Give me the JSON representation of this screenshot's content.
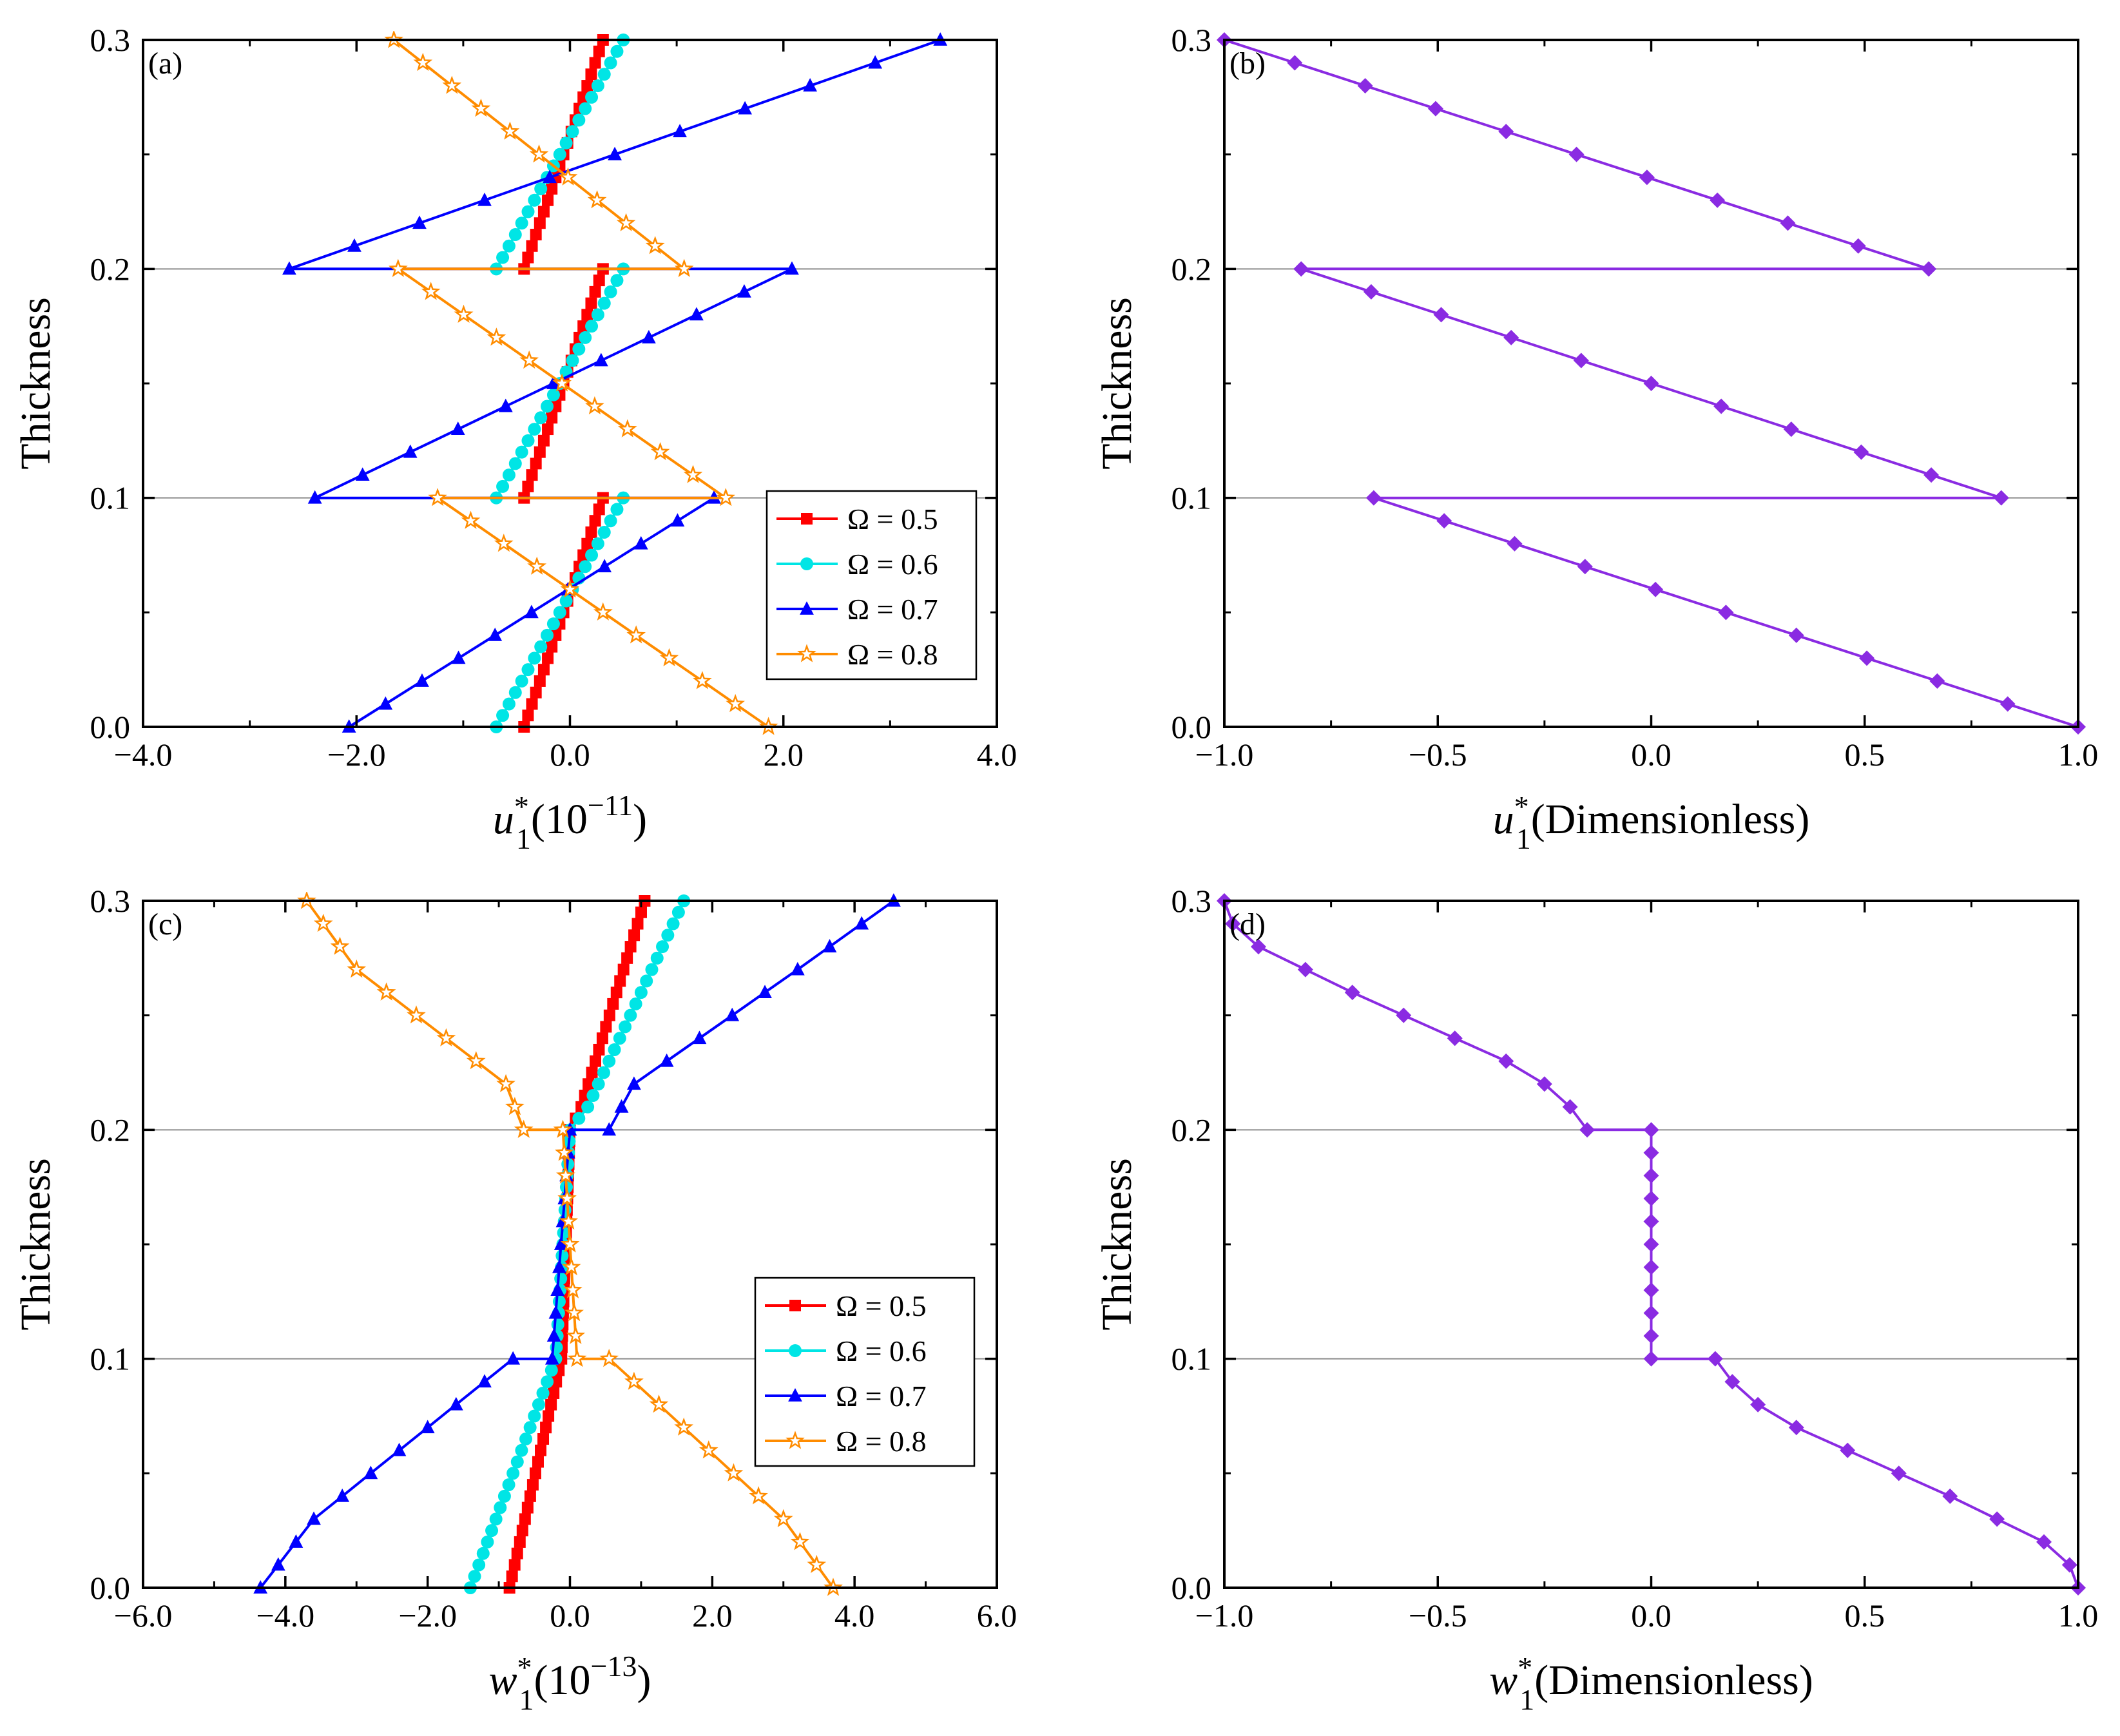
{
  "figure": {
    "chart_data": [
      {
        "id": "a",
        "type": "line",
        "panel_label": "(a)",
        "ylabel": "Thickness",
        "xlabel_var": "u",
        "xlabel_sub": "1",
        "xlabel_sup": "*",
        "xlabel_rest": "(10",
        "xlabel_exp": "−11",
        "xlabel_close": ")",
        "xlim": [
          -4.0,
          4.0
        ],
        "ylim": [
          0.0,
          0.3
        ],
        "xticks": [
          -4.0,
          -2.0,
          0.0,
          2.0,
          4.0
        ],
        "xtick_labels": [
          "−4.0",
          "−2.0",
          "0.0",
          "2.0",
          "4.0"
        ],
        "yticks": [
          0.0,
          0.1,
          0.2,
          0.3
        ],
        "ytick_labels": [
          "0.0",
          "0.1",
          "0.2",
          "0.3"
        ],
        "hlines": [
          0.1,
          0.2
        ],
        "legend": {
          "position": "right-middle",
          "entries": [
            "Ω = 0.5",
            "Ω = 0.6",
            "Ω = 0.7",
            "Ω = 0.8"
          ]
        },
        "series": [
          {
            "name": "Ω = 0.5",
            "color": "#ff0000",
            "marker": "square",
            "segments": [
              [
                [
                  -0.43,
                  0.0
                ],
                [
                  0.31,
                  0.1
                ]
              ],
              [
                [
                  -0.43,
                  0.1
                ],
                [
                  0.31,
                  0.2
                ]
              ],
              [
                [
                  -0.43,
                  0.2
                ],
                [
                  0.31,
                  0.3
                ]
              ]
            ],
            "step": 0.005
          },
          {
            "name": "Ω = 0.6",
            "color": "#00e5e5",
            "marker": "circle",
            "segments": [
              [
                [
                  -0.69,
                  0.0
                ],
                [
                  0.5,
                  0.1
                ]
              ],
              [
                [
                  -0.69,
                  0.1
                ],
                [
                  0.5,
                  0.2
                ]
              ],
              [
                [
                  -0.69,
                  0.2
                ],
                [
                  0.5,
                  0.3
                ]
              ]
            ],
            "step": 0.005
          },
          {
            "name": "Ω = 0.7",
            "color": "#0000ff",
            "marker": "triangle",
            "segments": [
              [
                [
                  -2.07,
                  0.0
                ],
                [
                  1.35,
                  0.1
                ]
              ],
              [
                [
                  -2.39,
                  0.1
                ],
                [
                  2.08,
                  0.2
                ]
              ],
              [
                [
                  -2.63,
                  0.2
                ],
                [
                  3.47,
                  0.3
                ]
              ]
            ],
            "step": 0.01
          },
          {
            "name": "Ω = 0.8",
            "color": "#ff8c00",
            "marker": "star",
            "segments": [
              [
                [
                  1.86,
                  0.0
                ],
                [
                  -1.24,
                  0.1
                ]
              ],
              [
                [
                  1.46,
                  0.1
                ],
                [
                  -1.61,
                  0.2
                ]
              ],
              [
                [
                  1.07,
                  0.2
                ],
                [
                  -1.65,
                  0.3
                ]
              ]
            ],
            "step": 0.01
          }
        ]
      },
      {
        "id": "b",
        "type": "line",
        "panel_label": "(b)",
        "ylabel": "Thickness",
        "xlabel_var": "u",
        "xlabel_sub": "1",
        "xlabel_sup": "*",
        "xlabel_rest": "(Dimensionless)",
        "xlabel_exp": "",
        "xlabel_close": "",
        "xlim": [
          -1.0,
          1.0
        ],
        "ylim": [
          0.0,
          0.3
        ],
        "xticks": [
          -1.0,
          -0.5,
          0.0,
          0.5,
          1.0
        ],
        "xtick_labels": [
          "−1.0",
          "−0.5",
          "0.0",
          "0.5",
          "1.0"
        ],
        "yticks": [
          0.0,
          0.1,
          0.2,
          0.3
        ],
        "ytick_labels": [
          "0.0",
          "0.1",
          "0.2",
          "0.3"
        ],
        "hlines": [
          0.1,
          0.2
        ],
        "series": [
          {
            "name": "u1*",
            "color": "#8a2be2",
            "marker": "diamond",
            "segments": [
              [
                [
                  1.0,
                  0.0
                ],
                [
                  -0.65,
                  0.1
                ]
              ],
              [
                [
                  0.82,
                  0.1
                ],
                [
                  -0.82,
                  0.2
                ]
              ],
              [
                [
                  0.65,
                  0.2
                ],
                [
                  -1.0,
                  0.3
                ]
              ]
            ],
            "step": 0.01
          }
        ]
      },
      {
        "id": "c",
        "type": "line",
        "panel_label": "(c)",
        "ylabel": "Thickness",
        "xlabel_var": "w",
        "xlabel_sub": "1",
        "xlabel_sup": "*",
        "xlabel_rest": "(10",
        "xlabel_exp": "−13",
        "xlabel_close": ")",
        "xlim": [
          -6.0,
          6.0
        ],
        "ylim": [
          0.0,
          0.3
        ],
        "xticks": [
          -6.0,
          -4.0,
          -2.0,
          0.0,
          2.0,
          4.0,
          6.0
        ],
        "xtick_labels": [
          "−6.0",
          "−4.0",
          "−2.0",
          "0.0",
          "2.0",
          "4.0",
          "6.0"
        ],
        "yticks": [
          0.0,
          0.1,
          0.2,
          0.3
        ],
        "ytick_labels": [
          "0.0",
          "0.1",
          "0.2",
          "0.3"
        ],
        "hlines": [
          0.1,
          0.2
        ],
        "legend": {
          "position": "right-middle",
          "entries": [
            "Ω = 0.5",
            "Ω = 0.6",
            "Ω = 0.7",
            "Ω = 0.8"
          ]
        },
        "series": [
          {
            "name": "Ω = 0.5",
            "color": "#ff0000",
            "marker": "square",
            "segments": [
              [
                [
                  -0.85,
                  0.0
                ],
                [
                  -0.12,
                  0.1
                ],
                [
                  0.0,
                  0.2
                ],
                [
                  0.16,
                  0.21
                ],
                [
                  1.05,
                  0.3
                ]
              ]
            ],
            "step": 0.005
          },
          {
            "name": "Ω = 0.6",
            "color": "#00e5e5",
            "marker": "circle",
            "segments": [
              [
                [
                  -1.4,
                  0.0
                ],
                [
                  -0.2,
                  0.1
                ],
                [
                  0.0,
                  0.2
                ],
                [
                  0.25,
                  0.21
                ],
                [
                  1.6,
                  0.3
                ]
              ]
            ],
            "step": 0.005
          },
          {
            "name": "Ω = 0.7",
            "color": "#0000ff",
            "marker": "triangle",
            "segments": [
              [
                [
                  -4.35,
                  0.0
                ],
                [
                  -3.6,
                  0.03
                ],
                [
                  -1.2,
                  0.09
                ],
                [
                  -0.8,
                  0.1
                ],
                [
                  -0.25,
                  0.1
                ],
                [
                  0.0,
                  0.2
                ],
                [
                  0.55,
                  0.2
                ],
                [
                  0.9,
                  0.22
                ],
                [
                  3.2,
                  0.27
                ],
                [
                  4.55,
                  0.3
                ]
              ]
            ],
            "step": 0.01
          },
          {
            "name": "Ω = 0.8",
            "color": "#ff8c00",
            "marker": "star",
            "segments": [
              [
                [
                  3.7,
                  0.0
                ],
                [
                  3.0,
                  0.03
                ],
                [
                  0.9,
                  0.09
                ],
                [
                  0.55,
                  0.1
                ],
                [
                  0.1,
                  0.1
                ],
                [
                  -0.1,
                  0.2
                ],
                [
                  -0.65,
                  0.2
                ],
                [
                  -0.9,
                  0.22
                ],
                [
                  -3.0,
                  0.27
                ],
                [
                  -3.7,
                  0.3
                ]
              ]
            ],
            "step": 0.01
          }
        ]
      },
      {
        "id": "d",
        "type": "line",
        "panel_label": "(d)",
        "ylabel": "Thickness",
        "xlabel_var": "w",
        "xlabel_sub": "1",
        "xlabel_sup": "*",
        "xlabel_rest": "(Dimensionless)",
        "xlabel_exp": "",
        "xlabel_close": "",
        "xlim": [
          -1.0,
          1.0
        ],
        "ylim": [
          0.0,
          0.3
        ],
        "xticks": [
          -1.0,
          -0.5,
          0.0,
          0.5,
          1.0
        ],
        "xtick_labels": [
          "−1.0",
          "−0.5",
          "0.0",
          "0.5",
          "1.0"
        ],
        "yticks": [
          0.0,
          0.1,
          0.2,
          0.3
        ],
        "ytick_labels": [
          "0.0",
          "0.1",
          "0.2",
          "0.3"
        ],
        "hlines": [
          0.1,
          0.2
        ],
        "series": [
          {
            "name": "w1*",
            "color": "#8a2be2",
            "marker": "diamond",
            "segments": [
              [
                [
                  1.0,
                  0.0
                ],
                [
                  0.98,
                  0.01
                ],
                [
                  0.92,
                  0.02
                ],
                [
                  0.81,
                  0.03
                ],
                [
                  0.7,
                  0.04
                ],
                [
                  0.58,
                  0.05
                ],
                [
                  0.46,
                  0.06
                ],
                [
                  0.34,
                  0.07
                ],
                [
                  0.25,
                  0.08
                ],
                [
                  0.19,
                  0.09
                ],
                [
                  0.15,
                  0.1
                ],
                [
                  0.0,
                  0.1
                ],
                [
                  0.0,
                  0.11
                ],
                [
                  0.0,
                  0.12
                ],
                [
                  0.0,
                  0.13
                ],
                [
                  0.0,
                  0.14
                ],
                [
                  0.0,
                  0.15
                ],
                [
                  0.0,
                  0.16
                ],
                [
                  0.0,
                  0.17
                ],
                [
                  0.0,
                  0.18
                ],
                [
                  0.0,
                  0.19
                ],
                [
                  0.0,
                  0.2
                ],
                [
                  -0.15,
                  0.2
                ],
                [
                  -0.19,
                  0.21
                ],
                [
                  -0.25,
                  0.22
                ],
                [
                  -0.34,
                  0.23
                ],
                [
                  -0.46,
                  0.24
                ],
                [
                  -0.58,
                  0.25
                ],
                [
                  -0.7,
                  0.26
                ],
                [
                  -0.81,
                  0.27
                ],
                [
                  -0.92,
                  0.28
                ],
                [
                  -0.98,
                  0.29
                ],
                [
                  -1.0,
                  0.3
                ]
              ]
            ],
            "step": 0
          }
        ]
      }
    ]
  }
}
